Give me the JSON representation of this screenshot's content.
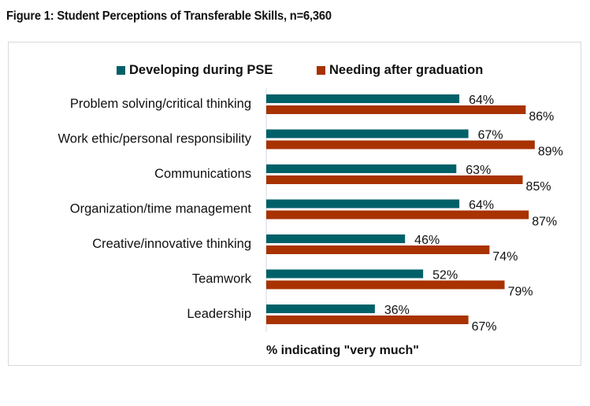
{
  "figure": {
    "title": "Figure 1: Student Perceptions of Transferable Skills, n=6,360"
  },
  "chart_data": {
    "type": "bar",
    "orientation": "horizontal",
    "title": "Figure 1: Student Perceptions of Transferable Skills, n=6,360",
    "xlabel": "% indicating \"very much\"",
    "ylabel": "",
    "xlim": [
      0,
      100
    ],
    "grid": false,
    "legend_position": "top",
    "categories": [
      "Problem solving/critical thinking",
      "Work ethic/personal responsibility",
      "Communications",
      "Organization/time management",
      "Creative/innovative thinking",
      "Teamwork",
      "Leadership"
    ],
    "series": [
      {
        "name": "Developing during PSE",
        "color": "#006068",
        "values": [
          64,
          67,
          63,
          64,
          46,
          52,
          36
        ],
        "labels": [
          "64%",
          "67%",
          "63%",
          "64%",
          "46%",
          "52%",
          "36%"
        ]
      },
      {
        "name": "Needing after graduation",
        "color": "#A83200",
        "values": [
          86,
          89,
          85,
          87,
          74,
          79,
          67
        ],
        "labels": [
          "86%",
          "89%",
          "85%",
          "87%",
          "74%",
          "79%",
          "67%"
        ]
      }
    ]
  }
}
